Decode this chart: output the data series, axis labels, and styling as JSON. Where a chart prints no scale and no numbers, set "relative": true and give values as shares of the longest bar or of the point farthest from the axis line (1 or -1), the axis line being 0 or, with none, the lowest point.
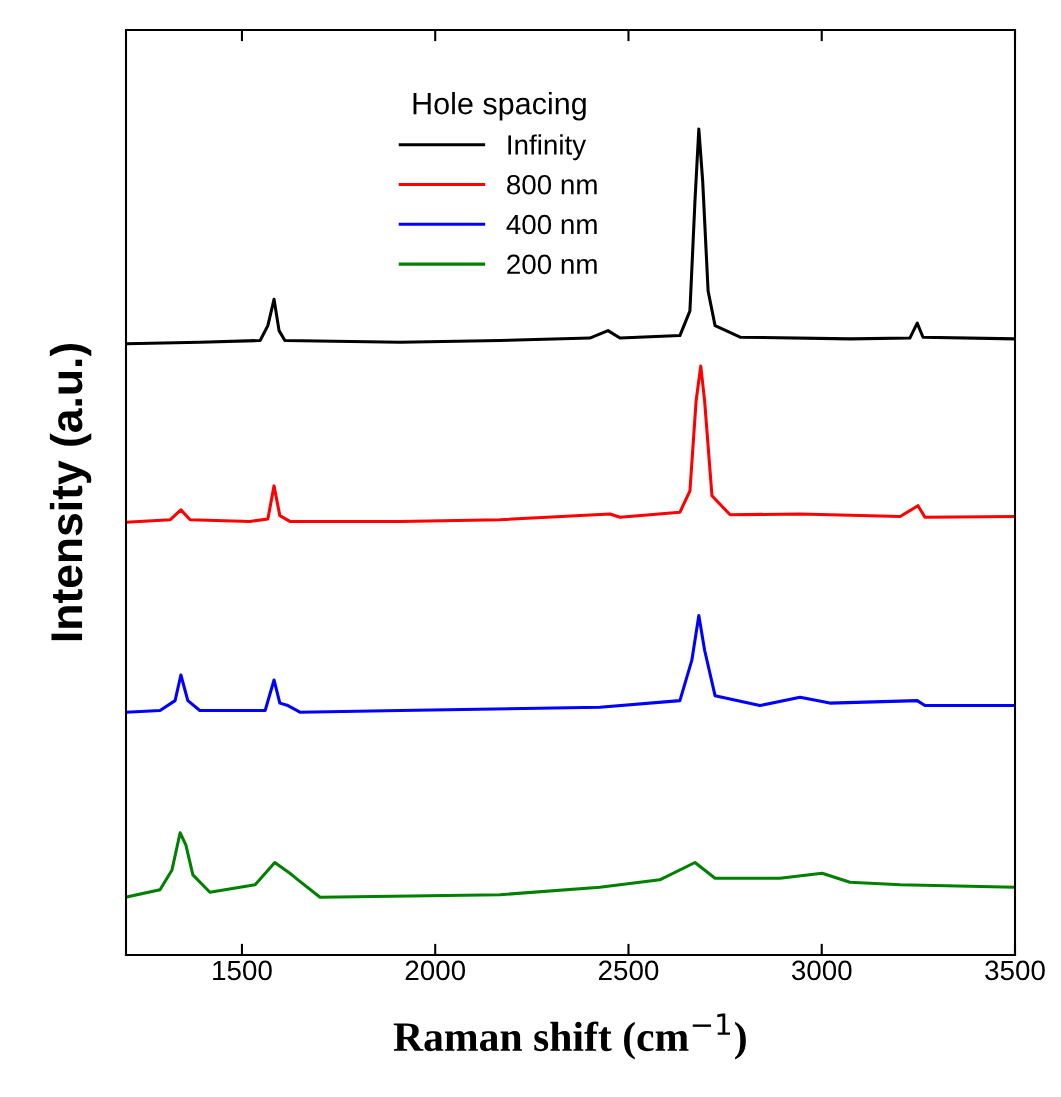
{
  "chart_data": {
    "type": "line",
    "relative": true,
    "xlabel": "Raman shift (cm$^{−1}$)",
    "ylabel": "Intensity (a.u.)",
    "legend_title": "Hole spacing",
    "legend": "top",
    "grid": false,
    "xlim": [
      1200,
      3500
    ],
    "xticks": [
      1500,
      2000,
      2500,
      3000,
      3500
    ],
    "tick_labels": "x",
    "series": [
      {
        "name": "Infinity",
        "color": "#000000",
        "x": [
          1200,
          1391,
          1547,
          1567,
          1583,
          1596,
          1611,
          1909,
          2168,
          2400,
          2447,
          2478,
          2633,
          2659,
          2672,
          2682,
          2692,
          2706,
          2724,
          2789,
          3073,
          3228,
          3247,
          3262,
          3500
        ],
        "values": [
          0.74,
          0.742,
          0.744,
          0.762,
          0.794,
          0.756,
          0.744,
          0.742,
          0.744,
          0.747,
          0.756,
          0.747,
          0.75,
          0.78,
          0.913,
          1.0,
          0.937,
          0.804,
          0.762,
          0.748,
          0.746,
          0.747,
          0.765,
          0.748,
          0.746
        ]
      },
      {
        "name": "800 nm",
        "color": "#ff0000",
        "x": [
          1200,
          1314,
          1342,
          1366,
          1521,
          1567,
          1583,
          1598,
          1624,
          1909,
          2168,
          2452,
          2478,
          2633,
          2659,
          2675,
          2687,
          2697,
          2716,
          2763,
          2944,
          3203,
          3249,
          3267,
          3500
        ],
        "values": [
          0.524,
          0.527,
          0.539,
          0.527,
          0.525,
          0.528,
          0.568,
          0.532,
          0.525,
          0.525,
          0.527,
          0.534,
          0.53,
          0.536,
          0.562,
          0.671,
          0.713,
          0.671,
          0.556,
          0.533,
          0.534,
          0.531,
          0.544,
          0.53,
          0.531
        ]
      },
      {
        "name": "400 nm",
        "color": "#0000ff",
        "x": [
          1200,
          1288,
          1327,
          1342,
          1360,
          1391,
          1560,
          1583,
          1598,
          1619,
          1650,
          1909,
          2426,
          2633,
          2664,
          2682,
          2697,
          2724,
          2840,
          2944,
          3021,
          3247,
          3267,
          3500
        ],
        "values": [
          0.294,
          0.296,
          0.308,
          0.339,
          0.308,
          0.296,
          0.296,
          0.333,
          0.305,
          0.302,
          0.294,
          0.296,
          0.3,
          0.308,
          0.357,
          0.411,
          0.369,
          0.314,
          0.302,
          0.312,
          0.305,
          0.308,
          0.302,
          0.302
        ]
      },
      {
        "name": "200 nm",
        "color": "#008000",
        "x": [
          1200,
          1288,
          1319,
          1340,
          1355,
          1373,
          1417,
          1534,
          1585,
          1624,
          1645,
          1702,
          2168,
          2426,
          2581,
          2672,
          2724,
          2892,
          3001,
          3073,
          3203,
          3500
        ],
        "values": [
          0.07,
          0.079,
          0.103,
          0.148,
          0.133,
          0.097,
          0.076,
          0.085,
          0.112,
          0.099,
          0.091,
          0.07,
          0.073,
          0.082,
          0.091,
          0.112,
          0.093,
          0.093,
          0.099,
          0.088,
          0.085,
          0.082
        ]
      }
    ]
  }
}
